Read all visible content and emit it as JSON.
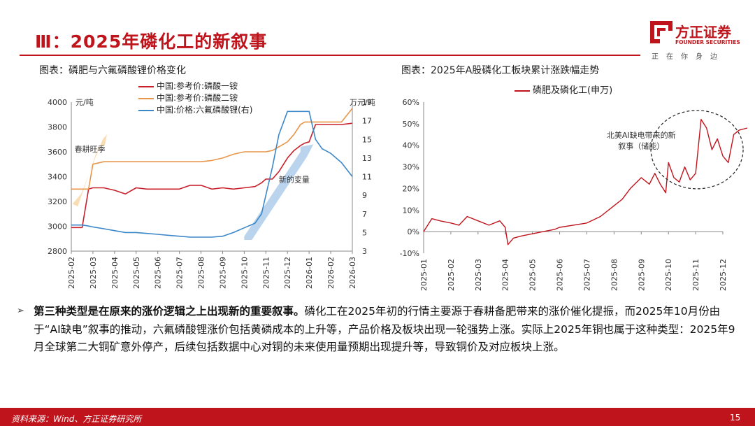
{
  "slide": {
    "title": "Ⅲ：2025年磷化工的新叙事",
    "page": "15",
    "source": "资料来源：Wind、方正证券研究所"
  },
  "logo": {
    "name": "方正证券",
    "en": "FOUNDER SECURITIES",
    "tagline": "正在你身边",
    "color": "#c0141c"
  },
  "bullet": {
    "bold": "第三种类型是在原来的涨价逻辑之上出现新的重要叙事。",
    "text": "磷化工在2025年初的行情主要源于春耕备肥带来的涨价催化提振，而2025年10月份由于“AI缺电”叙事的推动，六氟磷酸锂涨价包括黄磷成本的上升等，产品价格及板块出现一轮强势上涨。实际上2025年铜也属于这种类型：2025年9月全球第二大铜矿意外停产，后续包括数据中心对铜的未来使用量预期出现提升等，导致铜价及对应板块上涨。"
  },
  "chart_data": [
    {
      "type": "line",
      "caption": "图表：磷肥与六氟磷酸锂价格变化",
      "ylabel_left": "元/吨",
      "ylabel_right": "万元/吨",
      "ylim_left": [
        2800,
        4000
      ],
      "ylim_right": [
        3,
        19
      ],
      "yticks_left": [
        "4000",
        "3800",
        "3600",
        "3400",
        "3200",
        "3000",
        "2800"
      ],
      "yticks_right": [
        "19",
        "17",
        "15",
        "13",
        "11",
        "9",
        "7",
        "5",
        "3"
      ],
      "categories": [
        "2025-02",
        "2025-03",
        "2025-04",
        "2025-05",
        "2025-06",
        "2025-07",
        "2025-08",
        "2025-09",
        "2025-10",
        "2025-11",
        "2025-12",
        "2026-01",
        "2026-02",
        "2026-03"
      ],
      "x": [
        0,
        0.5,
        0.8,
        1,
        1.5,
        2,
        2.5,
        3,
        3.5,
        4,
        4.5,
        5,
        5.5,
        6,
        6.5,
        7,
        7.5,
        8,
        8.5,
        8.8,
        9,
        9.3,
        9.6,
        10,
        10.3,
        10.6,
        10.8,
        11,
        11.3,
        11.6,
        12,
        12.5,
        13
      ],
      "series": [
        {
          "name": "中国:参考价:磷酸一铵",
          "axis": "left",
          "color": "#c8202b",
          "values": [
            2990,
            2990,
            3300,
            3310,
            3310,
            3290,
            3260,
            3310,
            3300,
            3300,
            3300,
            3300,
            3330,
            3330,
            3300,
            3310,
            3300,
            3310,
            3320,
            3350,
            3380,
            3380,
            3440,
            3550,
            3610,
            3650,
            3670,
            3680,
            3820,
            3820,
            3820,
            3820,
            3830
          ]
        },
        {
          "name": "中国:参考价:磷酸二铵",
          "axis": "left",
          "color": "#e8964a",
          "values": [
            3300,
            3300,
            3300,
            3500,
            3520,
            3520,
            3520,
            3520,
            3520,
            3520,
            3520,
            3520,
            3520,
            3520,
            3530,
            3550,
            3580,
            3600,
            3600,
            3600,
            3600,
            3610,
            3640,
            3680,
            3740,
            3820,
            3840,
            3840,
            3840,
            3840,
            3840,
            3840,
            3950
          ]
        },
        {
          "name": "中国:价格:六氟磷酸锂(右)",
          "axis": "right",
          "color": "#3c87c8",
          "values": [
            5.8,
            5.8,
            5.7,
            5.6,
            5.4,
            5.2,
            5.0,
            5.0,
            4.9,
            4.8,
            4.7,
            4.6,
            4.5,
            4.5,
            4.5,
            4.6,
            5.0,
            5.5,
            6.0,
            7.0,
            9.0,
            12.0,
            15.5,
            18.0,
            18.0,
            18.0,
            18.0,
            18.0,
            15.0,
            14.0,
            13.5,
            12.5,
            11.0
          ]
        }
      ],
      "annotations": [
        {
          "text": "春耕旺季"
        },
        {
          "text": "新的变量"
        }
      ]
    },
    {
      "type": "line",
      "caption": "图表：2025年A股磷化工板块累计涨跌幅走势",
      "ylim": [
        -10,
        60
      ],
      "yticks": [
        "60%",
        "50%",
        "40%",
        "30%",
        "20%",
        "10%",
        "0%",
        "-10%"
      ],
      "categories": [
        "2025-01",
        "2025-02",
        "2025-03",
        "2025-04",
        "2025-05",
        "2025-06",
        "2025-07",
        "2025-08",
        "2025-09",
        "2025-10",
        "2025-11",
        "2025-12"
      ],
      "x": [
        0,
        0.3,
        0.6,
        1,
        1.3,
        1.6,
        2,
        2.4,
        2.8,
        3,
        3.1,
        3.3,
        3.6,
        4,
        4.4,
        4.8,
        5,
        5.5,
        6,
        6.5,
        7,
        7.3,
        7.6,
        8,
        8.3,
        8.5,
        8.7,
        8.9,
        9,
        9.2,
        9.4,
        9.6,
        9.8,
        10,
        10.2,
        10.4,
        10.6,
        10.8,
        11,
        11.2,
        11.4,
        11.6,
        11.9
      ],
      "series": [
        {
          "name": "磷肥及磷化工(申万)",
          "color": "#c0141c",
          "values": [
            0,
            6,
            5,
            4,
            3,
            7,
            5,
            3,
            5,
            2,
            -6,
            -3,
            -2,
            -1,
            0,
            1,
            2,
            3,
            4,
            7,
            12,
            15,
            20,
            25,
            22,
            27,
            22,
            18,
            32,
            25,
            23,
            30,
            24,
            27,
            52,
            48,
            38,
            43,
            35,
            32,
            45,
            47,
            48
          ]
        }
      ],
      "annotations": [
        {
          "text": "北美AI缺电带来的新叙事（储能）"
        }
      ]
    }
  ]
}
